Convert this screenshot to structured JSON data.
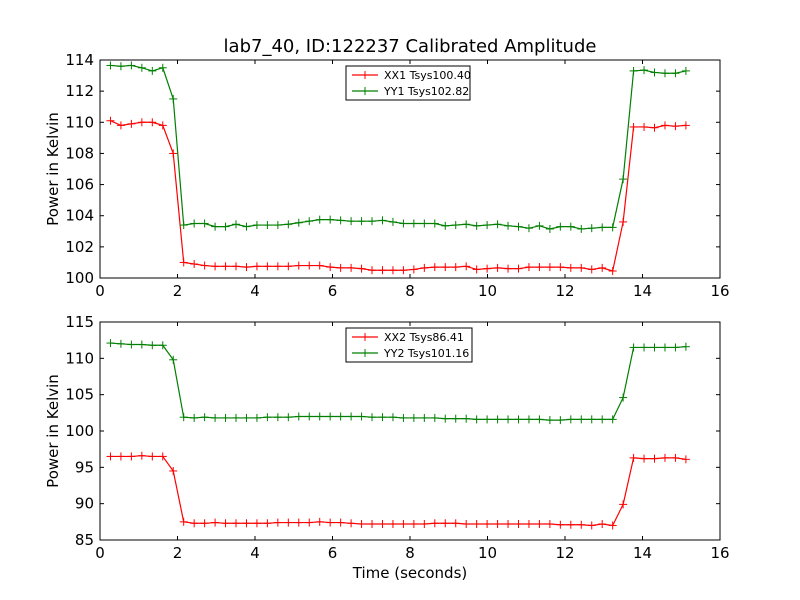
{
  "chart_data": [
    {
      "type": "line",
      "title": "lab7_40, ID:122237 Calibrated Amplitude",
      "xlabel": "",
      "ylabel": "Power in Kelvin",
      "xlim": [
        0,
        16
      ],
      "ylim": [
        100,
        114
      ],
      "xticks": [
        "0",
        "2",
        "4",
        "6",
        "8",
        "10",
        "12",
        "14",
        "16"
      ],
      "yticks": [
        "100",
        "102",
        "104",
        "106",
        "108",
        "110",
        "112",
        "114"
      ],
      "legend": "top-center",
      "grid": false,
      "x": [
        0.27,
        0.54,
        0.81,
        1.08,
        1.35,
        1.62,
        1.89,
        2.16,
        2.43,
        2.7,
        2.97,
        3.24,
        3.51,
        3.78,
        4.05,
        4.32,
        4.59,
        4.86,
        5.13,
        5.4,
        5.67,
        5.94,
        6.21,
        6.48,
        6.75,
        7.02,
        7.29,
        7.56,
        7.83,
        8.1,
        8.37,
        8.64,
        8.91,
        9.18,
        9.45,
        9.72,
        9.99,
        10.26,
        10.53,
        10.8,
        11.07,
        11.34,
        11.61,
        11.88,
        12.15,
        12.42,
        12.69,
        12.96,
        13.23,
        13.5,
        13.77,
        14.04,
        14.31,
        14.58,
        14.85,
        15.12
      ],
      "series": [
        {
          "name": "XX1 Tsys100.40",
          "color": "#ff0000",
          "values": [
            110.1,
            109.8,
            109.9,
            110.0,
            110.0,
            109.8,
            108.0,
            101.0,
            100.9,
            100.8,
            100.75,
            100.75,
            100.75,
            100.7,
            100.75,
            100.75,
            100.75,
            100.75,
            100.8,
            100.8,
            100.8,
            100.7,
            100.65,
            100.65,
            100.6,
            100.5,
            100.5,
            100.5,
            100.5,
            100.55,
            100.65,
            100.7,
            100.7,
            100.7,
            100.75,
            100.55,
            100.6,
            100.65,
            100.6,
            100.6,
            100.7,
            100.7,
            100.7,
            100.7,
            100.65,
            100.65,
            100.55,
            100.65,
            100.45,
            103.6,
            109.7,
            109.7,
            109.65,
            109.8,
            109.75,
            109.8
          ]
        },
        {
          "name": "YY1 Tsys102.82",
          "color": "#008000",
          "values": [
            113.65,
            113.6,
            113.65,
            113.5,
            113.3,
            113.5,
            111.5,
            103.4,
            103.5,
            103.5,
            103.3,
            103.3,
            103.45,
            103.3,
            103.4,
            103.4,
            103.4,
            103.45,
            103.55,
            103.65,
            103.75,
            103.75,
            103.7,
            103.65,
            103.65,
            103.65,
            103.7,
            103.6,
            103.5,
            103.5,
            103.5,
            103.5,
            103.35,
            103.4,
            103.45,
            103.35,
            103.4,
            103.45,
            103.35,
            103.3,
            103.2,
            103.35,
            103.15,
            103.3,
            103.3,
            103.15,
            103.2,
            103.25,
            103.25,
            106.35,
            113.3,
            113.35,
            113.2,
            113.15,
            113.15,
            113.3
          ]
        }
      ]
    },
    {
      "type": "line",
      "title": "",
      "xlabel": "Time (seconds)",
      "ylabel": "Power in Kelvin",
      "xlim": [
        0,
        16
      ],
      "ylim": [
        85,
        115
      ],
      "xticks": [
        "0",
        "2",
        "4",
        "6",
        "8",
        "10",
        "12",
        "14",
        "16"
      ],
      "yticks": [
        "85",
        "90",
        "95",
        "100",
        "105",
        "110",
        "115"
      ],
      "legend": "top-center",
      "grid": false,
      "x": [
        0.27,
        0.54,
        0.81,
        1.08,
        1.35,
        1.62,
        1.89,
        2.16,
        2.43,
        2.7,
        2.97,
        3.24,
        3.51,
        3.78,
        4.05,
        4.32,
        4.59,
        4.86,
        5.13,
        5.4,
        5.67,
        5.94,
        6.21,
        6.48,
        6.75,
        7.02,
        7.29,
        7.56,
        7.83,
        8.1,
        8.37,
        8.64,
        8.91,
        9.18,
        9.45,
        9.72,
        9.99,
        10.26,
        10.53,
        10.8,
        11.07,
        11.34,
        11.61,
        11.88,
        12.15,
        12.42,
        12.69,
        12.96,
        13.23,
        13.5,
        13.77,
        14.04,
        14.31,
        14.58,
        14.85,
        15.12
      ],
      "series": [
        {
          "name": "XX2 Tsys86.41",
          "color": "#ff0000",
          "values": [
            96.5,
            96.5,
            96.5,
            96.6,
            96.5,
            96.5,
            94.5,
            87.5,
            87.3,
            87.3,
            87.4,
            87.3,
            87.3,
            87.3,
            87.3,
            87.3,
            87.4,
            87.4,
            87.4,
            87.4,
            87.5,
            87.4,
            87.4,
            87.3,
            87.2,
            87.2,
            87.2,
            87.2,
            87.2,
            87.2,
            87.2,
            87.3,
            87.3,
            87.3,
            87.2,
            87.2,
            87.2,
            87.2,
            87.2,
            87.2,
            87.2,
            87.2,
            87.2,
            87.1,
            87.1,
            87.1,
            87.0,
            87.2,
            87.0,
            89.9,
            96.3,
            96.2,
            96.2,
            96.3,
            96.3,
            96.1
          ]
        },
        {
          "name": "YY2 Tsys101.16",
          "color": "#008000",
          "values": [
            112.1,
            112.0,
            111.9,
            111.9,
            111.8,
            111.8,
            109.8,
            101.9,
            101.8,
            101.9,
            101.8,
            101.8,
            101.8,
            101.8,
            101.8,
            101.9,
            101.9,
            101.9,
            102.0,
            102.0,
            102.0,
            102.0,
            102.0,
            102.0,
            102.0,
            101.9,
            101.9,
            101.9,
            101.8,
            101.8,
            101.8,
            101.8,
            101.7,
            101.7,
            101.7,
            101.6,
            101.6,
            101.6,
            101.6,
            101.6,
            101.6,
            101.6,
            101.5,
            101.5,
            101.6,
            101.6,
            101.6,
            101.6,
            101.6,
            104.6,
            111.5,
            111.5,
            111.5,
            111.5,
            111.5,
            111.6
          ]
        }
      ]
    }
  ]
}
